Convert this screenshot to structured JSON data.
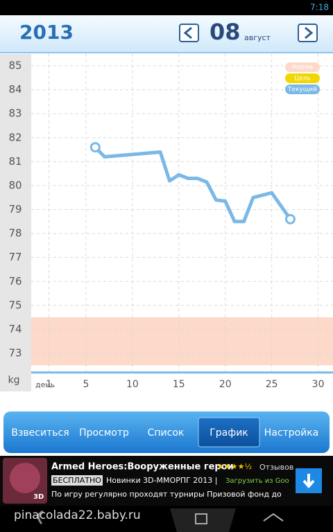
{
  "status": {
    "time": "7:18"
  },
  "header": {
    "year": "2013",
    "day": "08",
    "month": "август"
  },
  "chart_data": {
    "type": "line",
    "ylabel": "kg",
    "xlabel": "день",
    "x": [
      6,
      7,
      13,
      14,
      15,
      16,
      17,
      18,
      19,
      20,
      21,
      22,
      23,
      25,
      27
    ],
    "series": [
      {
        "name": "Текущий",
        "color": "#7ab8e6",
        "values": [
          81.6,
          81.2,
          81.4,
          80.2,
          80.45,
          80.3,
          80.3,
          80.15,
          79.4,
          79.35,
          78.5,
          78.5,
          79.5,
          79.7,
          78.6
        ]
      }
    ],
    "norm_band": {
      "name": "Норма",
      "range": [
        72.5,
        74.5
      ],
      "color": "#fdd9c9"
    },
    "goal": {
      "name": "Цель",
      "color": "#f2d600"
    },
    "xlim": [
      -0.9,
      31.6
    ],
    "xticks": [
      1,
      5,
      10,
      15,
      20,
      25,
      30
    ],
    "ylim": [
      72.2,
      85.5
    ],
    "yticks": [
      73,
      74,
      75,
      76,
      77,
      78,
      79,
      80,
      81,
      82,
      83,
      84,
      85
    ],
    "grid": true
  },
  "tabs": {
    "items": [
      "Взвеситься",
      "Просмотр",
      "Список",
      "График",
      "Настройка"
    ],
    "selected": 3
  },
  "ad": {
    "title": "Armed Heroes:Вооруженные герои",
    "stars": "★★★★½",
    "reviews": "Отзывов",
    "free": "БЕСПЛАТНО",
    "line1": "Новинки 3D-ММОРПГ 2013 |",
    "store": "Загрузить из Goo",
    "line2": "По игру регулярно проходят турниры Призовой фонд до",
    "badge": "3D"
  },
  "watermark": "pinacolada22.baby.ru"
}
